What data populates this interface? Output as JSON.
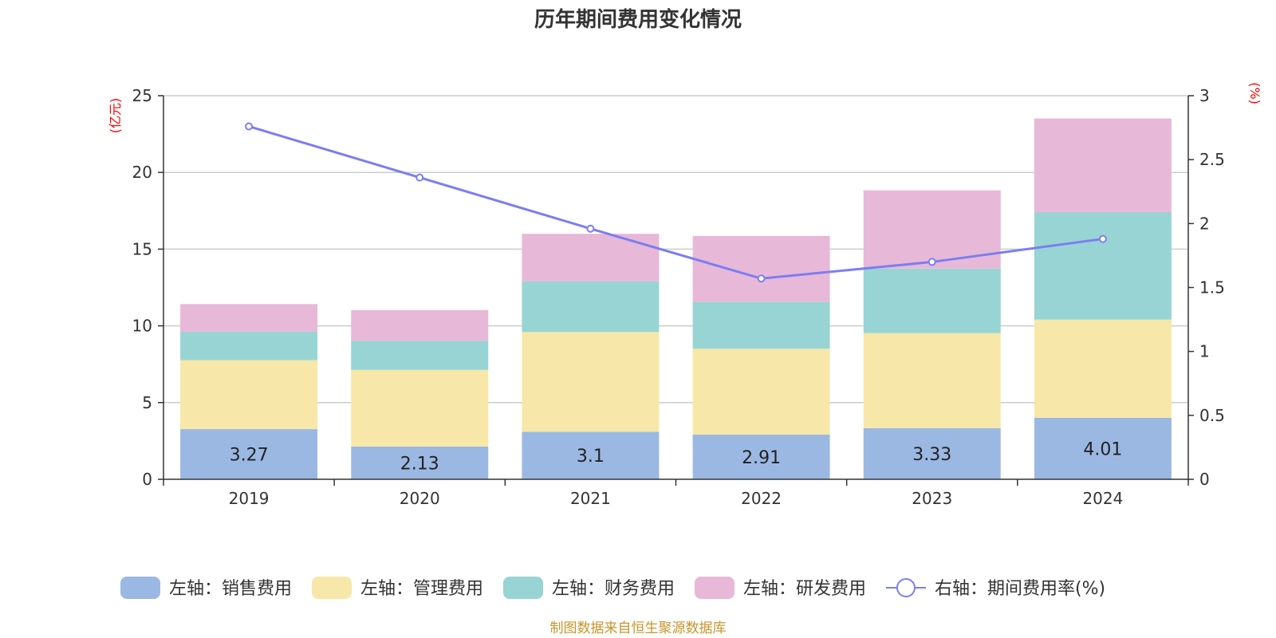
{
  "chart_data": {
    "type": "bar",
    "stacked": true,
    "title": "历年期间费用变化情况",
    "categories": [
      "2019",
      "2020",
      "2021",
      "2022",
      "2023",
      "2024"
    ],
    "left_axis": {
      "unit": "(亿元)",
      "min": 0,
      "max": 25,
      "ticks": [
        "0",
        "5",
        "10",
        "15",
        "20",
        "25"
      ]
    },
    "right_axis": {
      "unit": "(%)",
      "min": 0,
      "max": 3,
      "ticks": [
        "0",
        "0.5",
        "1",
        "1.5",
        "2",
        "2.5",
        "3"
      ]
    },
    "series": [
      {
        "name": "左轴：销售费用",
        "color": "#9bb8e3",
        "values": [
          3.27,
          2.13,
          3.1,
          2.91,
          3.33,
          4.01
        ],
        "labels": [
          "3.27",
          "2.13",
          "3.1",
          "2.91",
          "3.33",
          "4.01"
        ]
      },
      {
        "name": "左轴：管理费用",
        "color": "#f7e7a9",
        "values": [
          4.5,
          5.0,
          6.5,
          5.6,
          6.2,
          6.4
        ]
      },
      {
        "name": "左轴：财务费用",
        "color": "#98d4d4",
        "values": [
          1.85,
          1.9,
          3.3,
          3.05,
          4.2,
          7.0
        ]
      },
      {
        "name": "左轴：研发费用",
        "color": "#e8b8d8",
        "values": [
          1.8,
          2.0,
          3.1,
          4.3,
          5.1,
          6.1
        ]
      }
    ],
    "line": {
      "name": "右轴：期间费用率(%)",
      "color": "#7b7ef0",
      "values": [
        2.76,
        2.36,
        1.96,
        1.57,
        1.7,
        1.88
      ]
    },
    "legend_position": "bottom",
    "grid": true
  },
  "footer": {
    "source": "制图数据来自恒生聚源数据库"
  }
}
